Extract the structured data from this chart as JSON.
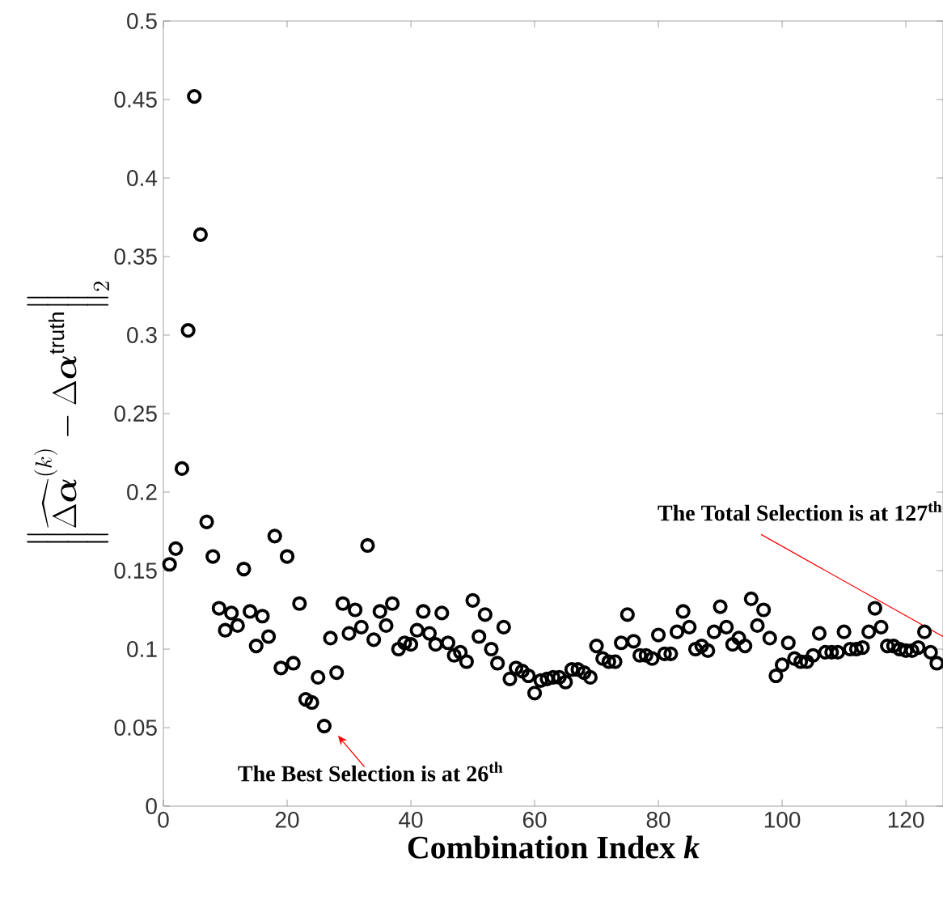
{
  "chart_data": {
    "type": "scatter",
    "xlabel": "Combination Index *k*",
    "ylabel": "\\left\\|\\widehat{\\Delta\\boldsymbol{\\alpha}}^{(k)}-\\Delta\\boldsymbol{\\alpha}^{\\mathrm{truth}}\\right\\|_2",
    "x": [
      1,
      2,
      3,
      4,
      5,
      6,
      7,
      8,
      9,
      10,
      11,
      12,
      13,
      14,
      15,
      16,
      17,
      18,
      19,
      20,
      21,
      22,
      23,
      24,
      25,
      26,
      27,
      28,
      29,
      30,
      31,
      32,
      33,
      34,
      35,
      36,
      37,
      38,
      39,
      40,
      41,
      42,
      43,
      44,
      45,
      46,
      47,
      48,
      49,
      50,
      51,
      52,
      53,
      54,
      55,
      56,
      57,
      58,
      59,
      60,
      61,
      62,
      63,
      64,
      65,
      66,
      67,
      68,
      69,
      70,
      71,
      72,
      73,
      74,
      75,
      76,
      77,
      78,
      79,
      80,
      81,
      82,
      83,
      84,
      85,
      86,
      87,
      88,
      89,
      90,
      91,
      92,
      93,
      94,
      95,
      96,
      97,
      98,
      99,
      100,
      101,
      102,
      103,
      104,
      105,
      106,
      107,
      108,
      109,
      110,
      111,
      112,
      113,
      114,
      115,
      116,
      117,
      118,
      119,
      120,
      121,
      122,
      123,
      124,
      125
    ],
    "series": [
      {
        "color": "#000000",
        "values": [
          0.154,
          0.164,
          0.215,
          0.303,
          0.452,
          0.364,
          0.181,
          0.159,
          0.126,
          0.112,
          0.123,
          0.115,
          0.151,
          0.124,
          0.102,
          0.121,
          0.108,
          0.172,
          0.088,
          0.159,
          0.091,
          0.129,
          0.068,
          0.066,
          0.082,
          0.051,
          0.107,
          0.085,
          0.129,
          0.11,
          0.125,
          0.114,
          0.166,
          0.106,
          0.124,
          0.115,
          0.129,
          0.1,
          0.104,
          0.103,
          0.112,
          0.124,
          0.11,
          0.103,
          0.123,
          0.104,
          0.096,
          0.098,
          0.092,
          0.131,
          0.108,
          0.122,
          0.1,
          0.091,
          0.114,
          0.081,
          0.088,
          0.086,
          0.083,
          0.072,
          0.08,
          0.081,
          0.082,
          0.082,
          0.079,
          0.087,
          0.087,
          0.085,
          0.082,
          0.102,
          0.094,
          0.092,
          0.092,
          0.104,
          0.122,
          0.105,
          0.096,
          0.096,
          0.094,
          0.109,
          0.097,
          0.097,
          0.111,
          0.124,
          0.114,
          0.1,
          0.102,
          0.099,
          0.111,
          0.127,
          0.114,
          0.103,
          0.107,
          0.102,
          0.132,
          0.115,
          0.125,
          0.107,
          0.083,
          0.09,
          0.104,
          0.094,
          0.092,
          0.092,
          0.096,
          0.11,
          0.098,
          0.098,
          0.098,
          0.111,
          0.1,
          0.1,
          0.101,
          0.111,
          0.126,
          0.114,
          0.102,
          0.102,
          0.1,
          0.099,
          0.099,
          0.101,
          0.111,
          0.098,
          0.091
        ]
      }
    ],
    "xlim": [
      0,
      126
    ],
    "ylim": [
      0,
      0.5
    ],
    "xticks": [
      0,
      20,
      40,
      60,
      80,
      100,
      120
    ],
    "yticks": [
      0,
      0.05,
      0.1,
      0.15,
      0.2,
      0.25,
      0.3,
      0.35,
      0.4,
      0.45,
      0.5
    ],
    "marker": "circle",
    "annotations": [
      {
        "text": "The Best Selection is at 26$^{th}$",
        "x": 26,
        "y": 0.051
      },
      "The Total Selection is at 127$^{th}$"
    ]
  }
}
